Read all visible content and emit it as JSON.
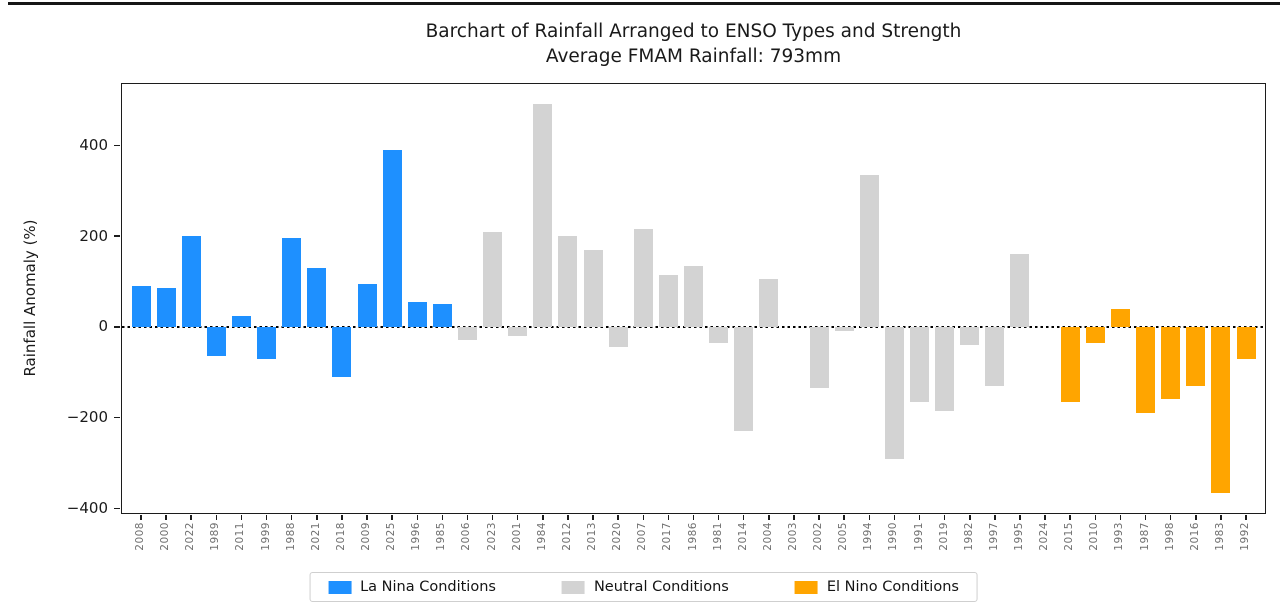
{
  "chart_data": {
    "type": "bar",
    "title": "Barchart of Rainfall Arranged to ENSO Types and Strength",
    "subtitle": "Average FMAM Rainfall: 793mm",
    "xlabel": "",
    "ylabel": "Rainfall Anomaly (%)",
    "ylim": [
      -410,
      535
    ],
    "yticks": [
      400,
      200,
      0,
      -200,
      -400
    ],
    "zero_line_style": "dotted",
    "grid": false,
    "legend_position": "bottom-center",
    "groups": [
      {
        "id": "la_nina",
        "label": "La Nina Conditions",
        "color": "#1E90FF"
      },
      {
        "id": "neutral",
        "label": "Neutral Conditions",
        "color": "#D3D3D3"
      },
      {
        "id": "el_nino",
        "label": "El Nino Conditions",
        "color": "#FFA500"
      }
    ],
    "bars": [
      {
        "year": "2008",
        "value": 90,
        "group": "la_nina"
      },
      {
        "year": "2000",
        "value": 85,
        "group": "la_nina"
      },
      {
        "year": "2022",
        "value": 200,
        "group": "la_nina"
      },
      {
        "year": "1989",
        "value": -65,
        "group": "la_nina"
      },
      {
        "year": "2011",
        "value": 25,
        "group": "la_nina"
      },
      {
        "year": "1999",
        "value": -70,
        "group": "la_nina"
      },
      {
        "year": "1988",
        "value": 195,
        "group": "la_nina"
      },
      {
        "year": "2021",
        "value": 130,
        "group": "la_nina"
      },
      {
        "year": "2018",
        "value": -110,
        "group": "la_nina"
      },
      {
        "year": "2009",
        "value": 95,
        "group": "la_nina"
      },
      {
        "year": "2025",
        "value": 390,
        "group": "la_nina"
      },
      {
        "year": "1996",
        "value": 55,
        "group": "la_nina"
      },
      {
        "year": "1985",
        "value": 50,
        "group": "la_nina"
      },
      {
        "year": "2006",
        "value": -30,
        "group": "neutral"
      },
      {
        "year": "2023",
        "value": 210,
        "group": "neutral"
      },
      {
        "year": "2001",
        "value": -20,
        "group": "neutral"
      },
      {
        "year": "1984",
        "value": 490,
        "group": "neutral"
      },
      {
        "year": "2012",
        "value": 200,
        "group": "neutral"
      },
      {
        "year": "2013",
        "value": 170,
        "group": "neutral"
      },
      {
        "year": "2020",
        "value": -45,
        "group": "neutral"
      },
      {
        "year": "2007",
        "value": 215,
        "group": "neutral"
      },
      {
        "year": "2017",
        "value": 115,
        "group": "neutral"
      },
      {
        "year": "1986",
        "value": 135,
        "group": "neutral"
      },
      {
        "year": "1981",
        "value": -35,
        "group": "neutral"
      },
      {
        "year": "2014",
        "value": -230,
        "group": "neutral"
      },
      {
        "year": "2004",
        "value": 105,
        "group": "neutral"
      },
      {
        "year": "2003",
        "value": 0,
        "group": "neutral"
      },
      {
        "year": "2002",
        "value": -135,
        "group": "neutral"
      },
      {
        "year": "2005",
        "value": -10,
        "group": "neutral"
      },
      {
        "year": "1994",
        "value": 335,
        "group": "neutral"
      },
      {
        "year": "1990",
        "value": -290,
        "group": "neutral"
      },
      {
        "year": "1991",
        "value": -165,
        "group": "neutral"
      },
      {
        "year": "2019",
        "value": -185,
        "group": "neutral"
      },
      {
        "year": "1982",
        "value": -40,
        "group": "neutral"
      },
      {
        "year": "1997",
        "value": -130,
        "group": "neutral"
      },
      {
        "year": "1995",
        "value": 160,
        "group": "neutral"
      },
      {
        "year": "2024",
        "value": 0,
        "group": "neutral"
      },
      {
        "year": "2015",
        "value": -165,
        "group": "el_nino"
      },
      {
        "year": "2010",
        "value": -35,
        "group": "el_nino"
      },
      {
        "year": "1993",
        "value": 40,
        "group": "el_nino"
      },
      {
        "year": "1987",
        "value": -190,
        "group": "el_nino"
      },
      {
        "year": "1998",
        "value": -160,
        "group": "el_nino"
      },
      {
        "year": "2016",
        "value": -130,
        "group": "el_nino"
      },
      {
        "year": "1983",
        "value": -365,
        "group": "el_nino"
      },
      {
        "year": "1992",
        "value": -70,
        "group": "el_nino"
      }
    ]
  }
}
